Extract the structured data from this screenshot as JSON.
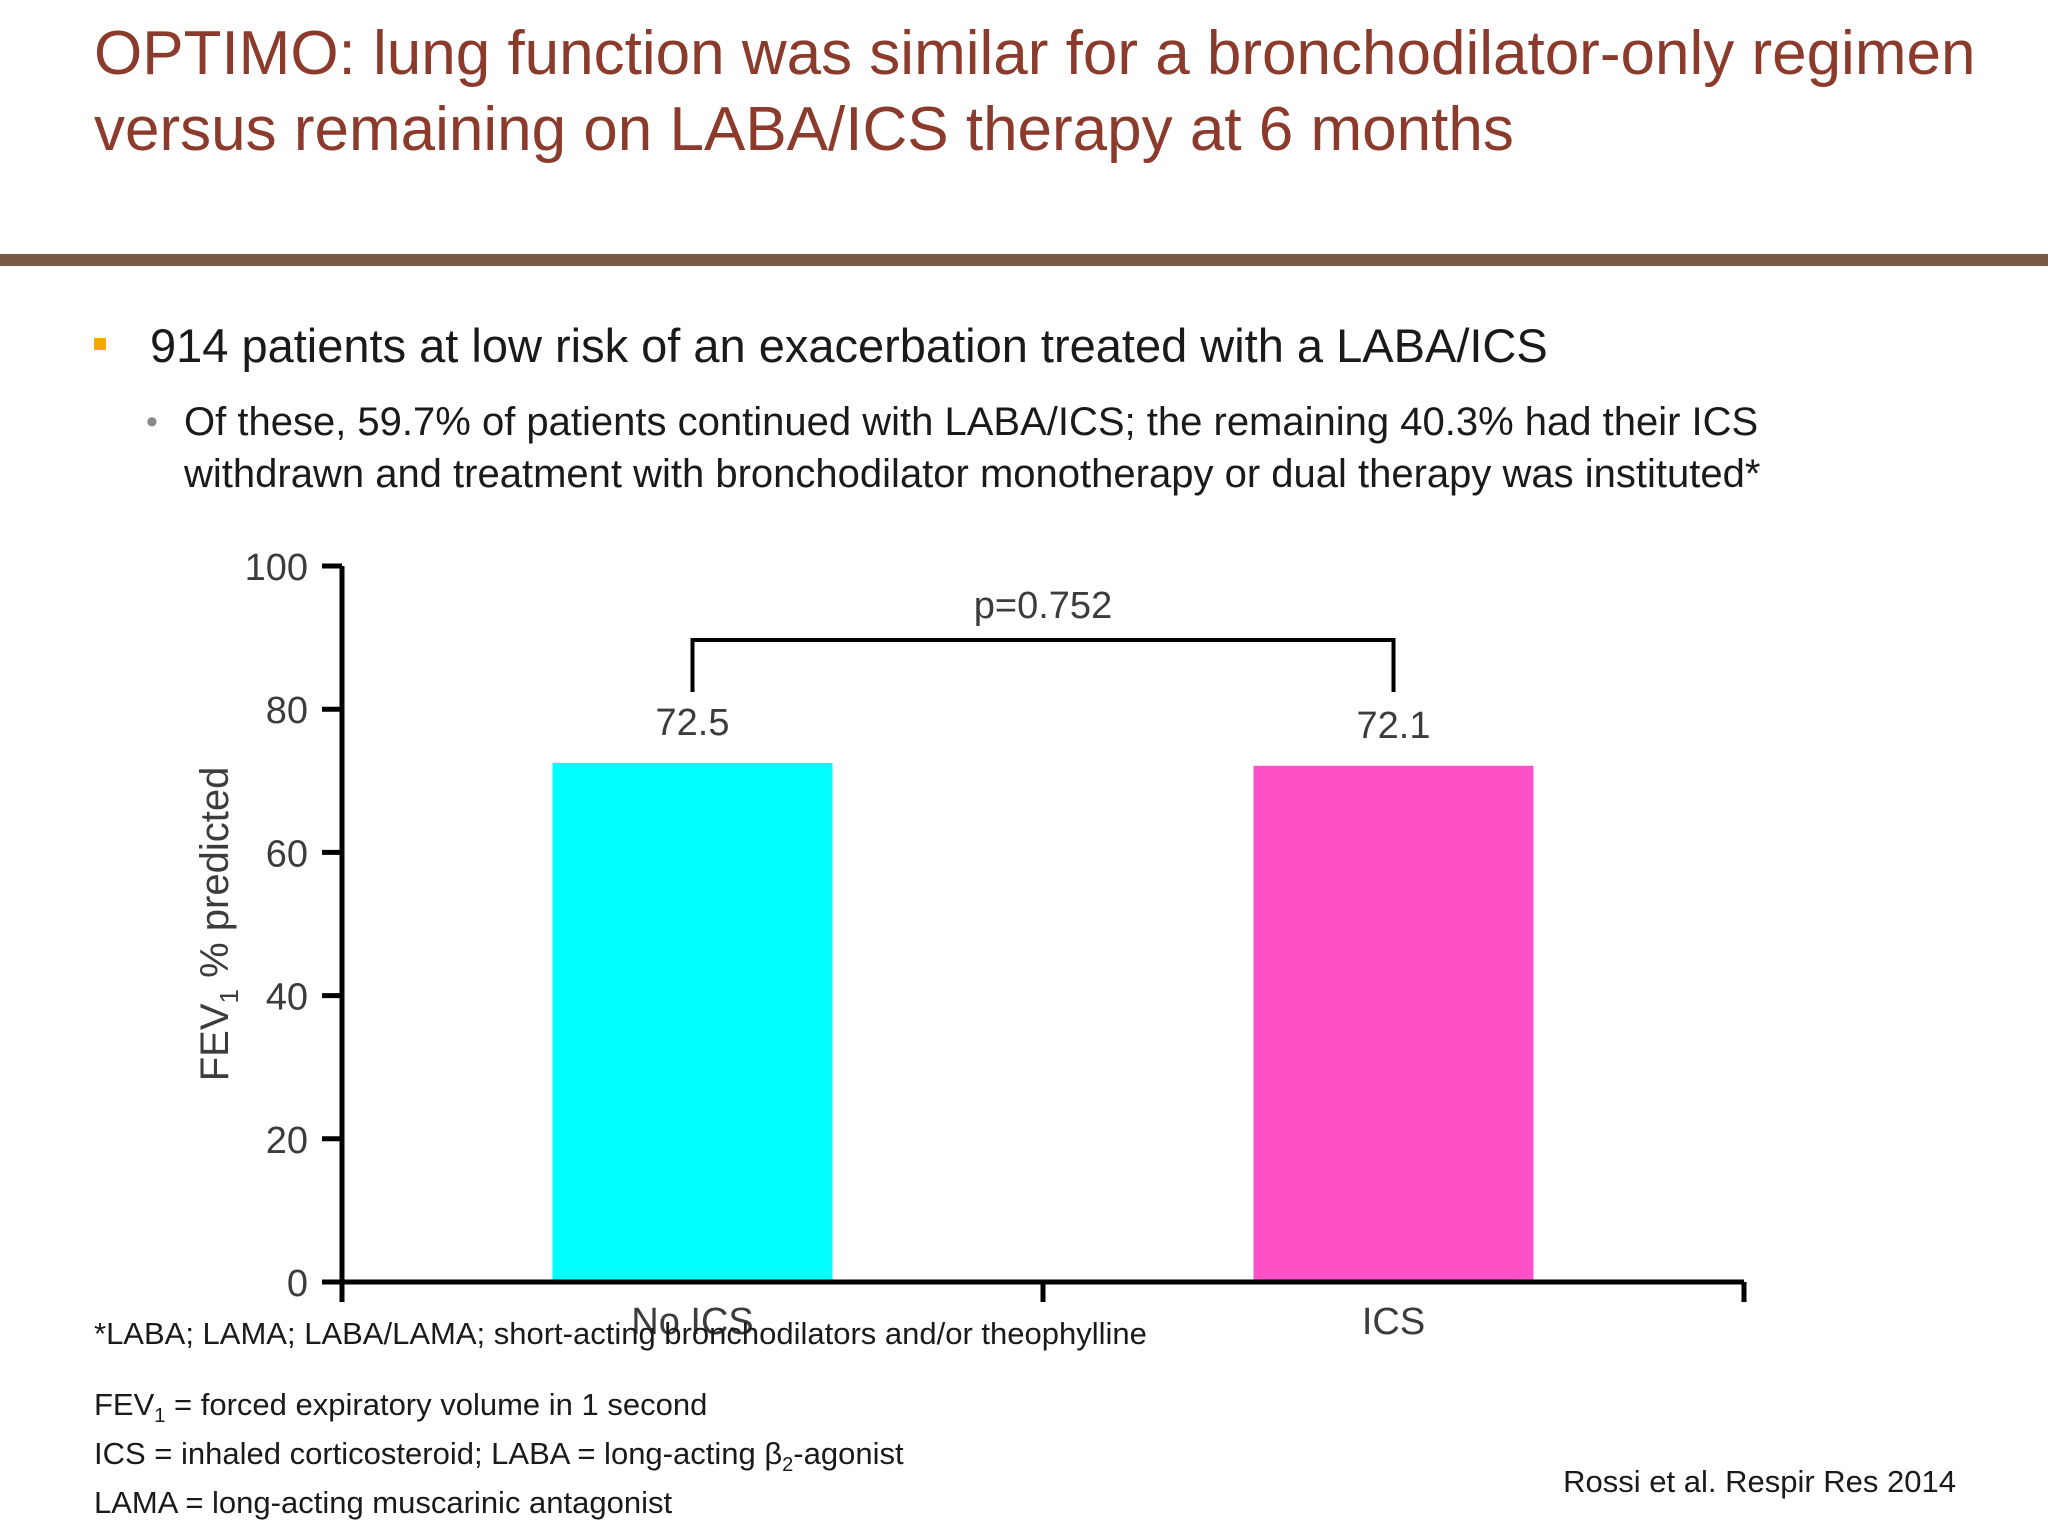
{
  "slide": {
    "title": "OPTIMO: lung function was similar for a bronchodilator-only regimen versus remaining on LABA/ICS therapy at 6 months",
    "bullet_main": "914 patients at low risk of an exacerbation treated with a LABA/ICS",
    "bullet_sub": "Of these, 59.7% of patients continued with LABA/ICS; the remaining 40.3% had their ICS withdrawn and treatment with bronchodilator monotherapy or dual therapy was instituted*",
    "footnote": "*LABA; LAMA; LABA/LAMA; short-acting bronchodilators and/or theophylline",
    "glossary": {
      "fev_prefix": "FEV",
      "fev_sub": "1",
      "fev_rest": " = forced expiratory volume in 1 second",
      "ics_line_pre": "ICS = inhaled corticosteroid; LABA = long-acting β",
      "ics_line_sub": "2",
      "ics_line_post": "-agonist",
      "lama_line": "LAMA = long-acting muscarinic antagonist"
    },
    "citation": "Rossi et al. Respir Res 2014",
    "colors": {
      "title": "#8B3A2B",
      "rule": "#7a5a44",
      "bullet_marker": "#f4a900"
    }
  },
  "chart_data": {
    "type": "bar",
    "categories": [
      "No ICS",
      "ICS"
    ],
    "values": [
      72.5,
      72.1
    ],
    "value_labels": [
      "72.5",
      "72.1"
    ],
    "colors": [
      "#00FFFF",
      "#FF50C8"
    ],
    "ylabel_main": "FEV",
    "ylabel_sub": "1",
    "ylabel_rest": " % predicted",
    "ylim": [
      0,
      100
    ],
    "yticks": [
      0,
      20,
      40,
      60,
      80,
      100
    ],
    "grid": false,
    "annotation": {
      "text": "p=0.752",
      "bracket_height": 88
    }
  }
}
